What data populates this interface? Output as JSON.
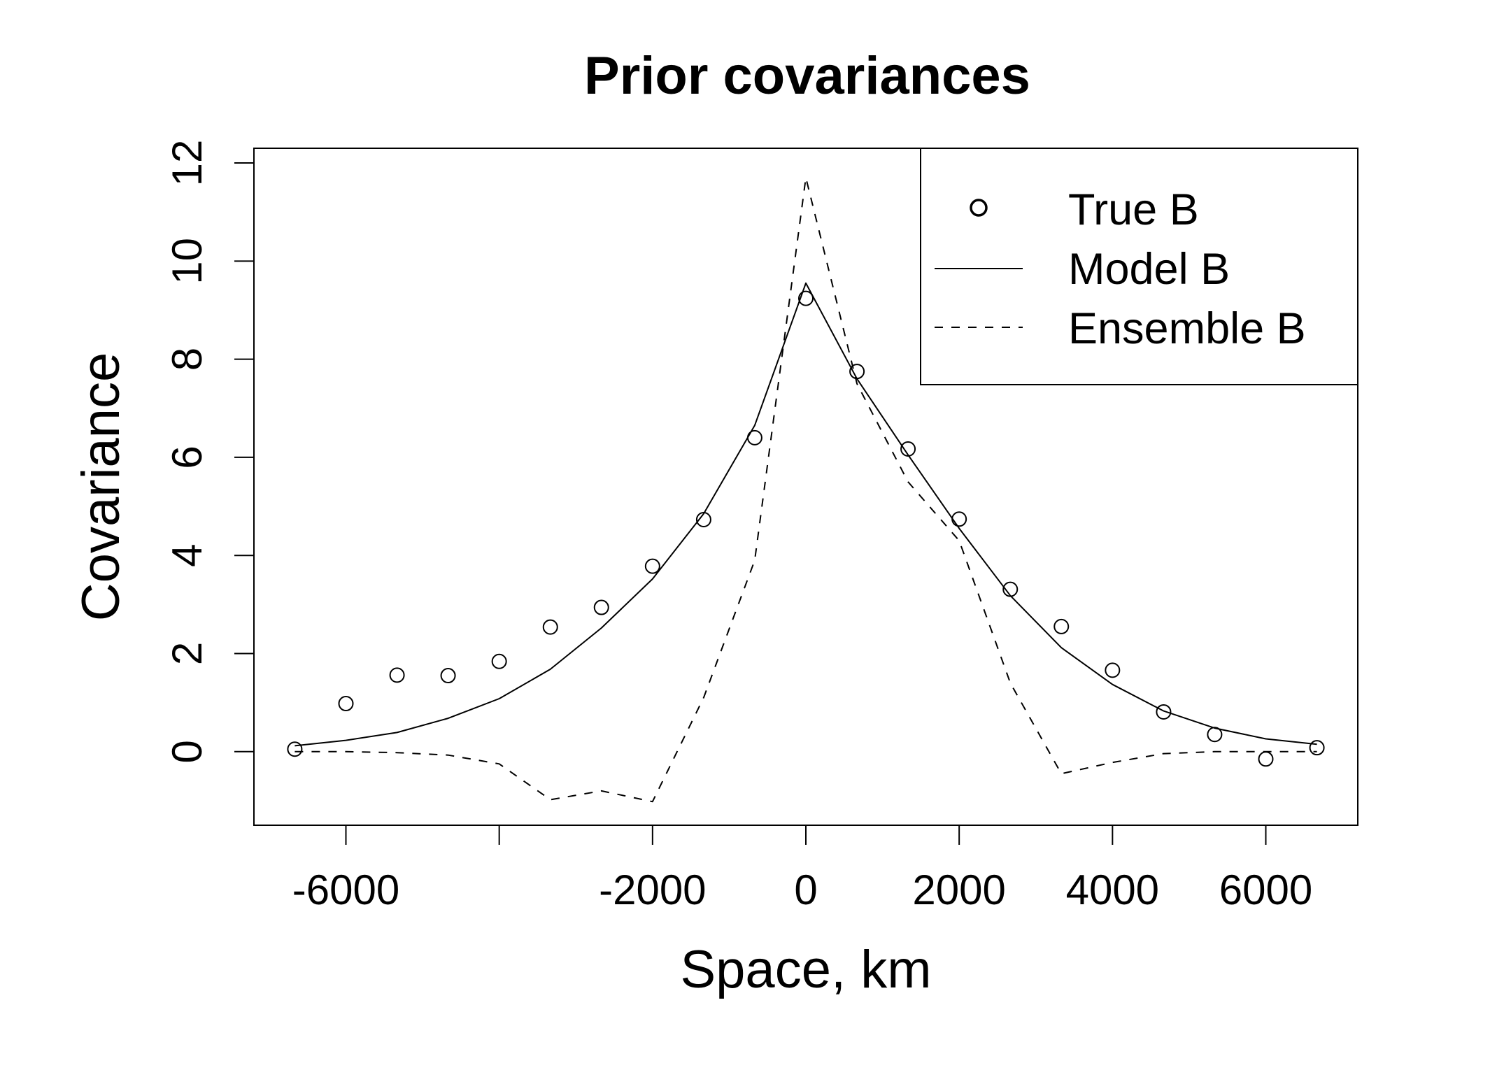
{
  "chart_data": {
    "type": "line",
    "title": "Prior covariances",
    "xlabel": "Space, km",
    "ylabel": "Covariance",
    "xlim": [
      -7200,
      7200
    ],
    "ylim": [
      -1.5,
      12.3
    ],
    "x_ticks": [
      -6000,
      -4000,
      -2000,
      0,
      2000,
      4000,
      6000
    ],
    "x_tick_labels": [
      "-6000",
      "",
      "-2000",
      "0",
      "2000",
      "4000",
      "6000"
    ],
    "y_ticks": [
      0,
      2,
      4,
      6,
      8,
      10,
      12
    ],
    "y_tick_labels": [
      "0",
      "2",
      "4",
      "6",
      "8",
      "10",
      "12"
    ],
    "grid": false,
    "legend_position": "top-right",
    "series": [
      {
        "name": "True B",
        "style": "points",
        "x": [
          -6667,
          -6000,
          -5333,
          -4667,
          -4000,
          -3333,
          -2667,
          -2000,
          -1333,
          -667,
          0,
          667,
          1333,
          2000,
          2667,
          3333,
          4000,
          4667,
          5333,
          6000,
          6667
        ],
        "values": [
          0.05,
          0.98,
          1.56,
          1.55,
          1.84,
          2.54,
          2.94,
          3.78,
          4.73,
          6.4,
          9.24,
          7.75,
          6.17,
          4.74,
          3.31,
          2.55,
          1.66,
          0.81,
          0.35,
          -0.15,
          0.08
        ]
      },
      {
        "name": "Model B",
        "style": "solid",
        "x": [
          -6667,
          -6000,
          -5333,
          -4667,
          -4000,
          -3333,
          -2667,
          -2000,
          -1333,
          -667,
          0,
          667,
          1333,
          2000,
          2667,
          3333,
          4000,
          4667,
          5333,
          6000,
          6667
        ],
        "values": [
          0.12,
          0.23,
          0.39,
          0.68,
          1.08,
          1.68,
          2.52,
          3.52,
          4.85,
          6.65,
          9.55,
          7.6,
          6.05,
          4.55,
          3.18,
          2.12,
          1.37,
          0.83,
          0.48,
          0.26,
          0.15
        ]
      },
      {
        "name": "Ensemble B",
        "style": "dashed",
        "x": [
          -6667,
          -6000,
          -5333,
          -4667,
          -4000,
          -3333,
          -2667,
          -2000,
          -1333,
          -667,
          0,
          667,
          1333,
          2000,
          2667,
          3333,
          4000,
          4667,
          5333,
          6000,
          6667
        ],
        "values": [
          0.0,
          0.0,
          -0.02,
          -0.07,
          -0.25,
          -0.98,
          -0.8,
          -1.02,
          1.1,
          3.9,
          11.7,
          7.5,
          5.5,
          4.3,
          1.4,
          -0.45,
          -0.22,
          -0.04,
          0.0,
          0.0,
          0.0
        ]
      }
    ]
  }
}
